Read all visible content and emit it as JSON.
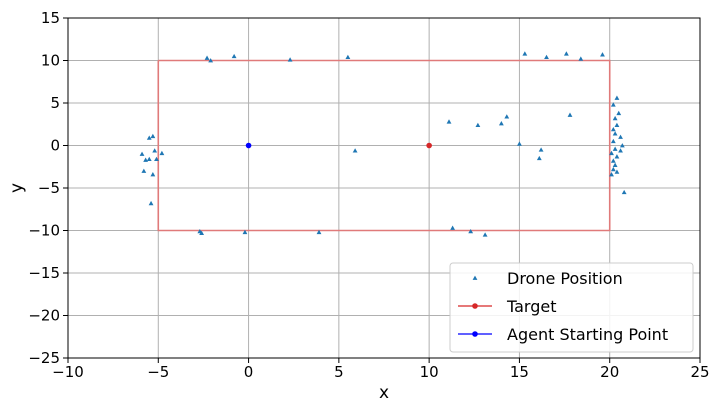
{
  "chart_data": {
    "type": "scatter",
    "xlabel": "x",
    "ylabel": "y",
    "xlim": [
      -10,
      25
    ],
    "ylim": [
      -25,
      15
    ],
    "xticks": [
      -10,
      -5,
      0,
      5,
      10,
      15,
      20,
      25
    ],
    "yticks": [
      -25,
      -20,
      -15,
      -10,
      -5,
      0,
      5,
      10,
      15
    ],
    "grid": true,
    "legend_position": "lower-right",
    "legend": [
      {
        "label": "Drone Position",
        "marker": "triangle",
        "color": "#1f77b4"
      },
      {
        "label": "Target",
        "marker": "line-dot",
        "color": "#d62728"
      },
      {
        "label": "Agent Starting Point",
        "marker": "line-dot",
        "color": "#0000ff"
      }
    ],
    "boundary": {
      "x": [
        -5,
        20,
        20,
        -5,
        -5
      ],
      "y": [
        10,
        10,
        -10,
        -10,
        10
      ],
      "color": "#e07a7a"
    },
    "series": [
      {
        "name": "Drone Position",
        "color": "#1f77b4",
        "marker": "triangle",
        "points": [
          [
            -5.9,
            -1.0
          ],
          [
            -5.7,
            -1.7
          ],
          [
            -5.5,
            0.9
          ],
          [
            -5.5,
            -1.6
          ],
          [
            -5.8,
            -3.0
          ],
          [
            -5.3,
            -3.4
          ],
          [
            -5.2,
            -0.6
          ],
          [
            -5.1,
            -1.6
          ],
          [
            -4.8,
            -0.9
          ],
          [
            -5.3,
            1.1
          ],
          [
            -5.4,
            -6.8
          ],
          [
            -2.3,
            10.3
          ],
          [
            -2.1,
            10.0
          ],
          [
            -0.8,
            10.5
          ],
          [
            2.3,
            10.1
          ],
          [
            5.5,
            10.4
          ],
          [
            5.9,
            -0.6
          ],
          [
            -2.7,
            -10.1
          ],
          [
            -2.6,
            -10.3
          ],
          [
            -0.2,
            -10.2
          ],
          [
            3.9,
            -10.2
          ],
          [
            11.1,
            2.8
          ],
          [
            12.7,
            2.4
          ],
          [
            14.0,
            2.6
          ],
          [
            14.3,
            3.4
          ],
          [
            15.0,
            0.2
          ],
          [
            16.1,
            -1.5
          ],
          [
            16.2,
            -0.5
          ],
          [
            17.8,
            3.6
          ],
          [
            15.3,
            10.8
          ],
          [
            16.5,
            10.4
          ],
          [
            17.6,
            10.8
          ],
          [
            18.4,
            10.2
          ],
          [
            19.6,
            10.7
          ],
          [
            11.3,
            -9.7
          ],
          [
            12.3,
            -10.1
          ],
          [
            13.1,
            -10.5
          ],
          [
            20.4,
            5.6
          ],
          [
            20.2,
            4.8
          ],
          [
            20.5,
            3.8
          ],
          [
            20.3,
            3.2
          ],
          [
            20.4,
            2.4
          ],
          [
            20.2,
            1.9
          ],
          [
            20.3,
            1.4
          ],
          [
            20.6,
            1.0
          ],
          [
            20.2,
            0.5
          ],
          [
            20.7,
            0.0
          ],
          [
            20.3,
            -0.4
          ],
          [
            20.6,
            -0.6
          ],
          [
            20.1,
            -0.9
          ],
          [
            20.4,
            -1.3
          ],
          [
            20.2,
            -1.8
          ],
          [
            20.3,
            -2.3
          ],
          [
            20.2,
            -2.8
          ],
          [
            20.4,
            -3.1
          ],
          [
            20.1,
            -3.4
          ],
          [
            20.8,
            -5.5
          ]
        ]
      },
      {
        "name": "Target",
        "color": "#d62728",
        "marker": "circle",
        "points": [
          [
            10,
            0
          ]
        ]
      },
      {
        "name": "Agent Starting Point",
        "color": "#0000ff",
        "marker": "circle",
        "points": [
          [
            0,
            0
          ]
        ]
      }
    ]
  }
}
